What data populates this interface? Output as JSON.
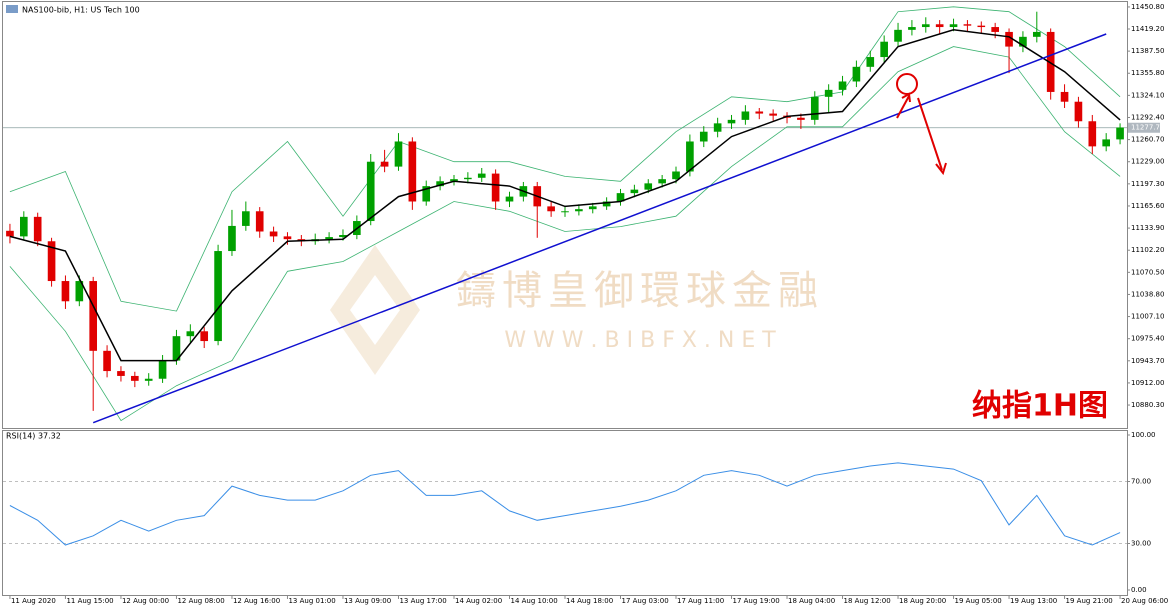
{
  "chart_data": {
    "type": "candlestick",
    "title": "NAS100-bib, H1: US Tech 100",
    "up_color": "#00a000",
    "down_color": "#e00000",
    "ylim": [
      10847.4,
      11457.9
    ],
    "yticks": [
      {
        "value": 11450.8,
        "label": "11450.80"
      },
      {
        "value": 11419.2,
        "label": "11419.20"
      },
      {
        "value": 11387.5,
        "label": "11387.50"
      },
      {
        "value": 11355.8,
        "label": "11355.80"
      },
      {
        "value": 11324.1,
        "label": "11324.10"
      },
      {
        "value": 11292.4,
        "label": "11292.40"
      },
      {
        "value": 11260.7,
        "label": "11260.70"
      },
      {
        "value": 11229,
        "label": "11229.00"
      },
      {
        "value": 11197.3,
        "label": "11197.30"
      },
      {
        "value": 11165.6,
        "label": "11165.60"
      },
      {
        "value": 11133.9,
        "label": "11133.90"
      },
      {
        "value": 11102.2,
        "label": "11102.20"
      },
      {
        "value": 11070.5,
        "label": "11070.50"
      },
      {
        "value": 11038.8,
        "label": "11038.80"
      },
      {
        "value": 11007.1,
        "label": "11007.10"
      },
      {
        "value": 10975.4,
        "label": "10975.40"
      },
      {
        "value": 10943.7,
        "label": "10943.70"
      },
      {
        "value": 10912,
        "label": "10912.00"
      },
      {
        "value": 10880.3,
        "label": "10880.30"
      }
    ],
    "current_price": {
      "value": 11277.7,
      "label": "11277.70"
    },
    "xlim": [
      -0.5,
      80.5
    ],
    "xticks": [
      {
        "value": 0,
        "label": "11 Aug 2020"
      },
      {
        "value": 4,
        "label": "11 Aug 15:00"
      },
      {
        "value": 8,
        "label": "12 Aug 00:00"
      },
      {
        "value": 12,
        "label": "12 Aug 08:00"
      },
      {
        "value": 16,
        "label": "12 Aug 16:00"
      },
      {
        "value": 20,
        "label": "13 Aug 01:00"
      },
      {
        "value": 24,
        "label": "13 Aug 09:00"
      },
      {
        "value": 28,
        "label": "13 Aug 17:00"
      },
      {
        "value": 32,
        "label": "14 Aug 02:00"
      },
      {
        "value": 36,
        "label": "14 Aug 10:00"
      },
      {
        "value": 40,
        "label": "14 Aug 18:00"
      },
      {
        "value": 44,
        "label": "17 Aug 03:00"
      },
      {
        "value": 48,
        "label": "17 Aug 11:00"
      },
      {
        "value": 52,
        "label": "17 Aug 19:00"
      },
      {
        "value": 56,
        "label": "18 Aug 04:00"
      },
      {
        "value": 60,
        "label": "18 Aug 12:00"
      },
      {
        "value": 64,
        "label": "18 Aug 20:00"
      },
      {
        "value": 68,
        "label": "19 Aug 05:00"
      },
      {
        "value": 72,
        "label": "19 Aug 13:00"
      },
      {
        "value": 76,
        "label": "19 Aug 21:00"
      },
      {
        "value": 80,
        "label": "20 Aug 06:00"
      }
    ],
    "candles": [
      [
        11130,
        11140,
        11112,
        11122
      ],
      [
        11122,
        11158,
        11116,
        11150
      ],
      [
        11150,
        11156,
        11108,
        11115
      ],
      [
        11115,
        11120,
        11050,
        11058
      ],
      [
        11058,
        11066,
        11018,
        11029
      ],
      [
        11029,
        11066,
        11022,
        11058
      ],
      [
        11058,
        11064,
        10872,
        10958
      ],
      [
        10958,
        10966,
        10920,
        10929
      ],
      [
        10929,
        10936,
        10914,
        10922
      ],
      [
        10922,
        10928,
        10906,
        10915
      ],
      [
        10915,
        10926,
        10908,
        10918
      ],
      [
        10918,
        10952,
        10912,
        10944
      ],
      [
        10944,
        10988,
        10938,
        10979
      ],
      [
        10979,
        10996,
        10970,
        10986
      ],
      [
        10986,
        10992,
        10962,
        10972
      ],
      [
        10972,
        11110,
        10966,
        11101
      ],
      [
        11101,
        11160,
        11094,
        11137
      ],
      [
        11137,
        11172,
        11130,
        11158
      ],
      [
        11158,
        11164,
        11120,
        11129
      ],
      [
        11129,
        11136,
        11114,
        11122
      ],
      [
        11122,
        11128,
        11110,
        11118
      ],
      [
        11118,
        11124,
        11108,
        11115
      ],
      [
        11115,
        11126,
        11110,
        11118
      ],
      [
        11118,
        11128,
        11112,
        11121
      ],
      [
        11121,
        11132,
        11116,
        11124
      ],
      [
        11124,
        11152,
        11118,
        11144
      ],
      [
        11144,
        11240,
        11138,
        11229
      ],
      [
        11229,
        11246,
        11214,
        11222
      ],
      [
        11222,
        11270,
        11216,
        11258
      ],
      [
        11258,
        11264,
        11160,
        11172
      ],
      [
        11172,
        11202,
        11166,
        11194
      ],
      [
        11194,
        11208,
        11188,
        11201
      ],
      [
        11201,
        11210,
        11195,
        11204
      ],
      [
        11204,
        11214,
        11198,
        11206
      ],
      [
        11206,
        11220,
        11200,
        11212
      ],
      [
        11212,
        11218,
        11160,
        11172
      ],
      [
        11172,
        11186,
        11164,
        11179
      ],
      [
        11179,
        11200,
        11172,
        11194
      ],
      [
        11194,
        11200,
        11120,
        11165
      ],
      [
        11165,
        11172,
        11150,
        11158
      ],
      [
        11158,
        11166,
        11150,
        11158
      ],
      [
        11158,
        11168,
        11152,
        11161
      ],
      [
        11161,
        11170,
        11155,
        11165
      ],
      [
        11165,
        11178,
        11160,
        11172
      ],
      [
        11172,
        11190,
        11166,
        11184
      ],
      [
        11184,
        11196,
        11178,
        11189
      ],
      [
        11189,
        11204,
        11184,
        11198
      ],
      [
        11198,
        11210,
        11192,
        11204
      ],
      [
        11204,
        11222,
        11198,
        11215
      ],
      [
        11215,
        11268,
        11208,
        11258
      ],
      [
        11258,
        11280,
        11250,
        11272
      ],
      [
        11272,
        11292,
        11264,
        11284
      ],
      [
        11284,
        11296,
        11276,
        11289
      ],
      [
        11289,
        11310,
        11282,
        11301
      ],
      [
        11301,
        11306,
        11290,
        11298
      ],
      [
        11298,
        11304,
        11288,
        11295
      ],
      [
        11295,
        11300,
        11284,
        11292
      ],
      [
        11292,
        11298,
        11276,
        11289
      ],
      [
        11289,
        11330,
        11282,
        11322
      ],
      [
        11322,
        11340,
        11300,
        11332
      ],
      [
        11332,
        11352,
        11324,
        11344
      ],
      [
        11344,
        11374,
        11336,
        11365
      ],
      [
        11365,
        11388,
        11358,
        11379
      ],
      [
        11379,
        11410,
        11372,
        11401
      ],
      [
        11401,
        11428,
        11394,
        11418
      ],
      [
        11418,
        11432,
        11410,
        11422
      ],
      [
        11422,
        11436,
        11414,
        11426
      ],
      [
        11426,
        11432,
        11412,
        11422
      ],
      [
        11422,
        11434,
        11416,
        11426
      ],
      [
        11426,
        11432,
        11416,
        11424
      ],
      [
        11424,
        11430,
        11412,
        11422
      ],
      [
        11422,
        11428,
        11406,
        11415
      ],
      [
        11415,
        11420,
        11356,
        11394
      ],
      [
        11394,
        11416,
        11386,
        11408
      ],
      [
        11408,
        11444,
        11400,
        11415
      ],
      [
        11415,
        11420,
        11318,
        11329
      ],
      [
        11329,
        11340,
        11306,
        11315
      ],
      [
        11315,
        11322,
        11278,
        11287
      ],
      [
        11287,
        11296,
        11240,
        11251
      ],
      [
        11251,
        11270,
        11244,
        11261
      ],
      [
        11261,
        11284,
        11254,
        11278
      ]
    ],
    "lines": [
      {
        "color": "#3cb371",
        "x": [
          0,
          4,
          8,
          12,
          16,
          20,
          24,
          28,
          32,
          36,
          40,
          44,
          48,
          52,
          56,
          60,
          64,
          68,
          72,
          76,
          80
        ],
        "values": [
          11186,
          11215,
          11029,
          11015,
          11186,
          11258,
          11151,
          11258,
          11229,
          11229,
          11208,
          11201,
          11272,
          11322,
          11315,
          11329,
          11444,
          11451,
          11444,
          11394,
          11322
        ]
      },
      {
        "color": "#3cb371",
        "x": [
          0,
          4,
          8,
          12,
          16,
          20,
          24,
          28,
          32,
          36,
          40,
          44,
          48,
          52,
          56,
          60,
          64,
          68,
          72,
          76,
          80
        ],
        "values": [
          11079,
          10986,
          10858,
          10908,
          10944,
          11072,
          11086,
          11129,
          11172,
          11158,
          11129,
          11136,
          11151,
          11222,
          11279,
          11279,
          11358,
          11394,
          11379,
          11272,
          11208
        ]
      },
      {
        "color": "#000000",
        "x": [
          0,
          4,
          8,
          12,
          16,
          20,
          24,
          28,
          32,
          36,
          40,
          44,
          48,
          52,
          56,
          60,
          64,
          68,
          72,
          76,
          80
        ],
        "values": [
          11122,
          11101,
          10944,
          10944,
          11044,
          11115,
          11118,
          11179,
          11201,
          11194,
          11165,
          11172,
          11201,
          11265,
          11294,
          11301,
          11394,
          11418,
          11408,
          11358,
          11289
        ]
      },
      {
        "color": "#1010d0",
        "x": [
          6,
          79
        ],
        "values": [
          10855,
          11412
        ]
      }
    ],
    "rsi": {
      "title": "RSI(14) 37.32",
      "color": "#3a8ee6",
      "ylim": [
        0,
        100
      ],
      "yticks": [
        {
          "value": 100,
          "label": "100.00"
        },
        {
          "value": 70,
          "label": "70.00"
        },
        {
          "value": 30,
          "label": "30.00"
        },
        {
          "value": 0,
          "label": "0.00"
        }
      ],
      "x": [
        0,
        2,
        4,
        6,
        8,
        10,
        12,
        14,
        16,
        18,
        20,
        22,
        24,
        26,
        28,
        30,
        32,
        34,
        36,
        38,
        40,
        42,
        44,
        46,
        48,
        50,
        52,
        54,
        56,
        58,
        60,
        62,
        64,
        66,
        68,
        70,
        72,
        74,
        76,
        78,
        80
      ],
      "values": [
        54.5,
        45,
        29,
        35,
        45,
        38,
        45,
        48,
        67,
        61,
        58,
        58,
        64,
        74,
        77,
        61,
        61,
        64,
        51,
        45,
        48,
        51,
        54,
        58,
        64,
        74,
        77,
        74,
        67,
        74,
        77,
        80,
        82,
        80,
        78,
        70.5,
        42,
        61,
        35,
        29,
        37
      ]
    },
    "watermark": {
      "title": "鑄博皇御環球金融",
      "url": "W W W . B I B F X . N E T"
    },
    "annotation": "纳指1H图"
  }
}
